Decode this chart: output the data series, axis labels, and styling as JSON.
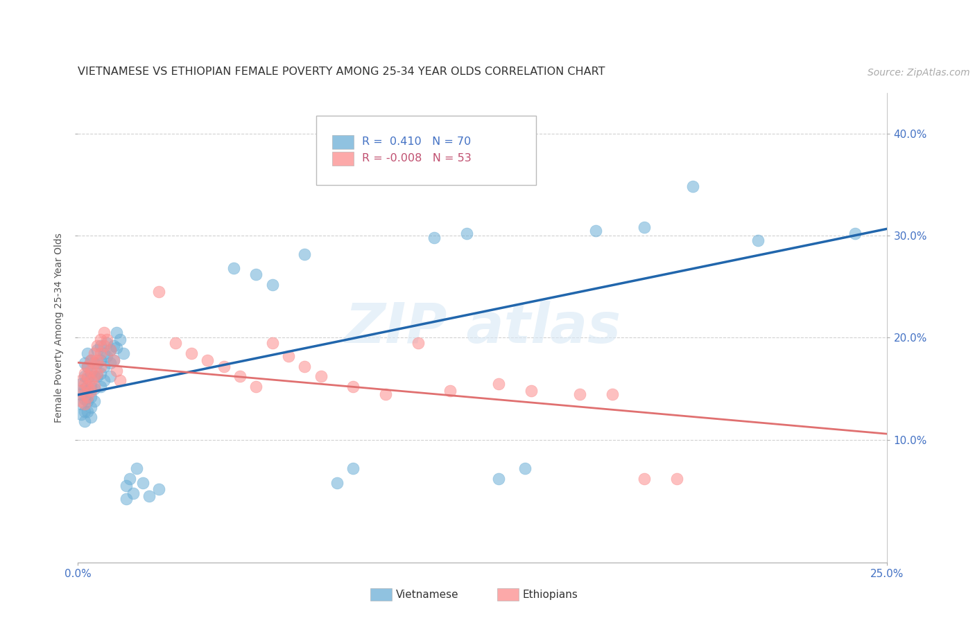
{
  "title": "VIETNAMESE VS ETHIOPIAN FEMALE POVERTY AMONG 25-34 YEAR OLDS CORRELATION CHART",
  "source": "Source: ZipAtlas.com",
  "ylabel": "Female Poverty Among 25-34 Year Olds",
  "xlim": [
    0.0,
    0.25
  ],
  "ylim": [
    -0.02,
    0.44
  ],
  "xticks": [
    0.0,
    0.25
  ],
  "xtick_labels": [
    "0.0%",
    "25.0%"
  ],
  "ytick_positions": [
    0.1,
    0.2,
    0.3,
    0.4
  ],
  "ytick_labels": [
    "10.0%",
    "20.0%",
    "30.0%",
    "40.0%"
  ],
  "viet_color": "#6baed6",
  "eth_color": "#fc8d8d",
  "viet_line_color": "#2166ac",
  "eth_line_color": "#e07070",
  "background_color": "#ffffff",
  "grid_color": "#cccccc",
  "title_fontsize": 11.5,
  "axis_label_fontsize": 10,
  "tick_fontsize": 11,
  "source_fontsize": 10,
  "viet_points": [
    [
      0.001,
      0.155
    ],
    [
      0.001,
      0.145
    ],
    [
      0.001,
      0.135
    ],
    [
      0.001,
      0.125
    ],
    [
      0.002,
      0.175
    ],
    [
      0.002,
      0.162
    ],
    [
      0.002,
      0.15
    ],
    [
      0.002,
      0.14
    ],
    [
      0.002,
      0.128
    ],
    [
      0.002,
      0.118
    ],
    [
      0.003,
      0.185
    ],
    [
      0.003,
      0.172
    ],
    [
      0.003,
      0.16
    ],
    [
      0.003,
      0.148
    ],
    [
      0.003,
      0.138
    ],
    [
      0.003,
      0.128
    ],
    [
      0.004,
      0.178
    ],
    [
      0.004,
      0.165
    ],
    [
      0.004,
      0.152
    ],
    [
      0.004,
      0.142
    ],
    [
      0.004,
      0.132
    ],
    [
      0.004,
      0.122
    ],
    [
      0.005,
      0.175
    ],
    [
      0.005,
      0.162
    ],
    [
      0.005,
      0.15
    ],
    [
      0.005,
      0.138
    ],
    [
      0.006,
      0.188
    ],
    [
      0.006,
      0.175
    ],
    [
      0.006,
      0.162
    ],
    [
      0.007,
      0.192
    ],
    [
      0.007,
      0.178
    ],
    [
      0.007,
      0.165
    ],
    [
      0.007,
      0.152
    ],
    [
      0.008,
      0.185
    ],
    [
      0.008,
      0.172
    ],
    [
      0.008,
      0.158
    ],
    [
      0.009,
      0.195
    ],
    [
      0.009,
      0.182
    ],
    [
      0.01,
      0.188
    ],
    [
      0.01,
      0.175
    ],
    [
      0.01,
      0.162
    ],
    [
      0.011,
      0.192
    ],
    [
      0.011,
      0.178
    ],
    [
      0.012,
      0.205
    ],
    [
      0.012,
      0.19
    ],
    [
      0.013,
      0.198
    ],
    [
      0.014,
      0.185
    ],
    [
      0.015,
      0.055
    ],
    [
      0.015,
      0.042
    ],
    [
      0.016,
      0.062
    ],
    [
      0.017,
      0.048
    ],
    [
      0.018,
      0.072
    ],
    [
      0.02,
      0.058
    ],
    [
      0.022,
      0.045
    ],
    [
      0.025,
      0.052
    ],
    [
      0.048,
      0.268
    ],
    [
      0.055,
      0.262
    ],
    [
      0.06,
      0.252
    ],
    [
      0.07,
      0.282
    ],
    [
      0.08,
      0.058
    ],
    [
      0.085,
      0.072
    ],
    [
      0.11,
      0.298
    ],
    [
      0.12,
      0.302
    ],
    [
      0.13,
      0.062
    ],
    [
      0.138,
      0.072
    ],
    [
      0.16,
      0.305
    ],
    [
      0.175,
      0.308
    ],
    [
      0.19,
      0.348
    ],
    [
      0.21,
      0.295
    ],
    [
      0.24,
      0.302
    ]
  ],
  "eth_points": [
    [
      0.001,
      0.158
    ],
    [
      0.001,
      0.148
    ],
    [
      0.001,
      0.138
    ],
    [
      0.002,
      0.165
    ],
    [
      0.002,
      0.155
    ],
    [
      0.002,
      0.145
    ],
    [
      0.002,
      0.135
    ],
    [
      0.003,
      0.172
    ],
    [
      0.003,
      0.162
    ],
    [
      0.003,
      0.152
    ],
    [
      0.003,
      0.142
    ],
    [
      0.004,
      0.178
    ],
    [
      0.004,
      0.168
    ],
    [
      0.004,
      0.158
    ],
    [
      0.004,
      0.148
    ],
    [
      0.005,
      0.185
    ],
    [
      0.005,
      0.175
    ],
    [
      0.005,
      0.162
    ],
    [
      0.005,
      0.152
    ],
    [
      0.006,
      0.192
    ],
    [
      0.006,
      0.178
    ],
    [
      0.006,
      0.165
    ],
    [
      0.007,
      0.198
    ],
    [
      0.007,
      0.185
    ],
    [
      0.007,
      0.172
    ],
    [
      0.008,
      0.205
    ],
    [
      0.008,
      0.192
    ],
    [
      0.009,
      0.198
    ],
    [
      0.01,
      0.188
    ],
    [
      0.011,
      0.178
    ],
    [
      0.012,
      0.168
    ],
    [
      0.013,
      0.158
    ],
    [
      0.025,
      0.245
    ],
    [
      0.03,
      0.195
    ],
    [
      0.035,
      0.185
    ],
    [
      0.04,
      0.178
    ],
    [
      0.045,
      0.172
    ],
    [
      0.05,
      0.162
    ],
    [
      0.055,
      0.152
    ],
    [
      0.06,
      0.195
    ],
    [
      0.065,
      0.182
    ],
    [
      0.07,
      0.172
    ],
    [
      0.075,
      0.162
    ],
    [
      0.085,
      0.152
    ],
    [
      0.095,
      0.145
    ],
    [
      0.105,
      0.195
    ],
    [
      0.115,
      0.148
    ],
    [
      0.13,
      0.155
    ],
    [
      0.14,
      0.148
    ],
    [
      0.155,
      0.145
    ],
    [
      0.165,
      0.145
    ],
    [
      0.175,
      0.062
    ],
    [
      0.185,
      0.062
    ]
  ]
}
